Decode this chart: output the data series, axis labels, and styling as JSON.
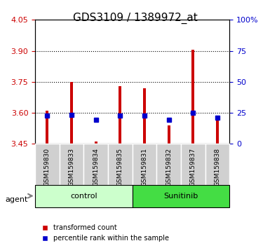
{
  "title": "GDS3109 / 1389972_at",
  "samples": [
    "GSM159830",
    "GSM159833",
    "GSM159834",
    "GSM159835",
    "GSM159831",
    "GSM159832",
    "GSM159837",
    "GSM159838"
  ],
  "groups": [
    "control",
    "control",
    "control",
    "control",
    "Sunitinib",
    "Sunitinib",
    "Sunitinib",
    "Sunitinib"
  ],
  "bar_bottom": 3.45,
  "bar_tops": [
    3.61,
    3.75,
    3.46,
    3.73,
    3.72,
    3.54,
    3.905,
    3.57
  ],
  "blue_values": [
    3.585,
    3.59,
    3.565,
    3.585,
    3.585,
    3.565,
    3.6,
    3.577
  ],
  "ylim": [
    3.45,
    4.05
  ],
  "y_ticks": [
    3.45,
    3.6,
    3.75,
    3.9,
    4.05
  ],
  "y2_ticks": [
    0,
    25,
    50,
    75,
    100
  ],
  "y2_tick_labels": [
    "0",
    "25",
    "50",
    "75",
    "100%"
  ],
  "grid_lines": [
    3.6,
    3.75,
    3.9
  ],
  "bar_color": "#cc0000",
  "blue_color": "#0000cc",
  "control_bg": "#ccffcc",
  "sunitinib_bg": "#44dd44",
  "group_labels": [
    "control",
    "Sunitinib"
  ],
  "group_label_color": "black",
  "left_color": "#cc0000",
  "right_color": "#0000cc",
  "bar_width": 0.6,
  "agent_label": "agent"
}
